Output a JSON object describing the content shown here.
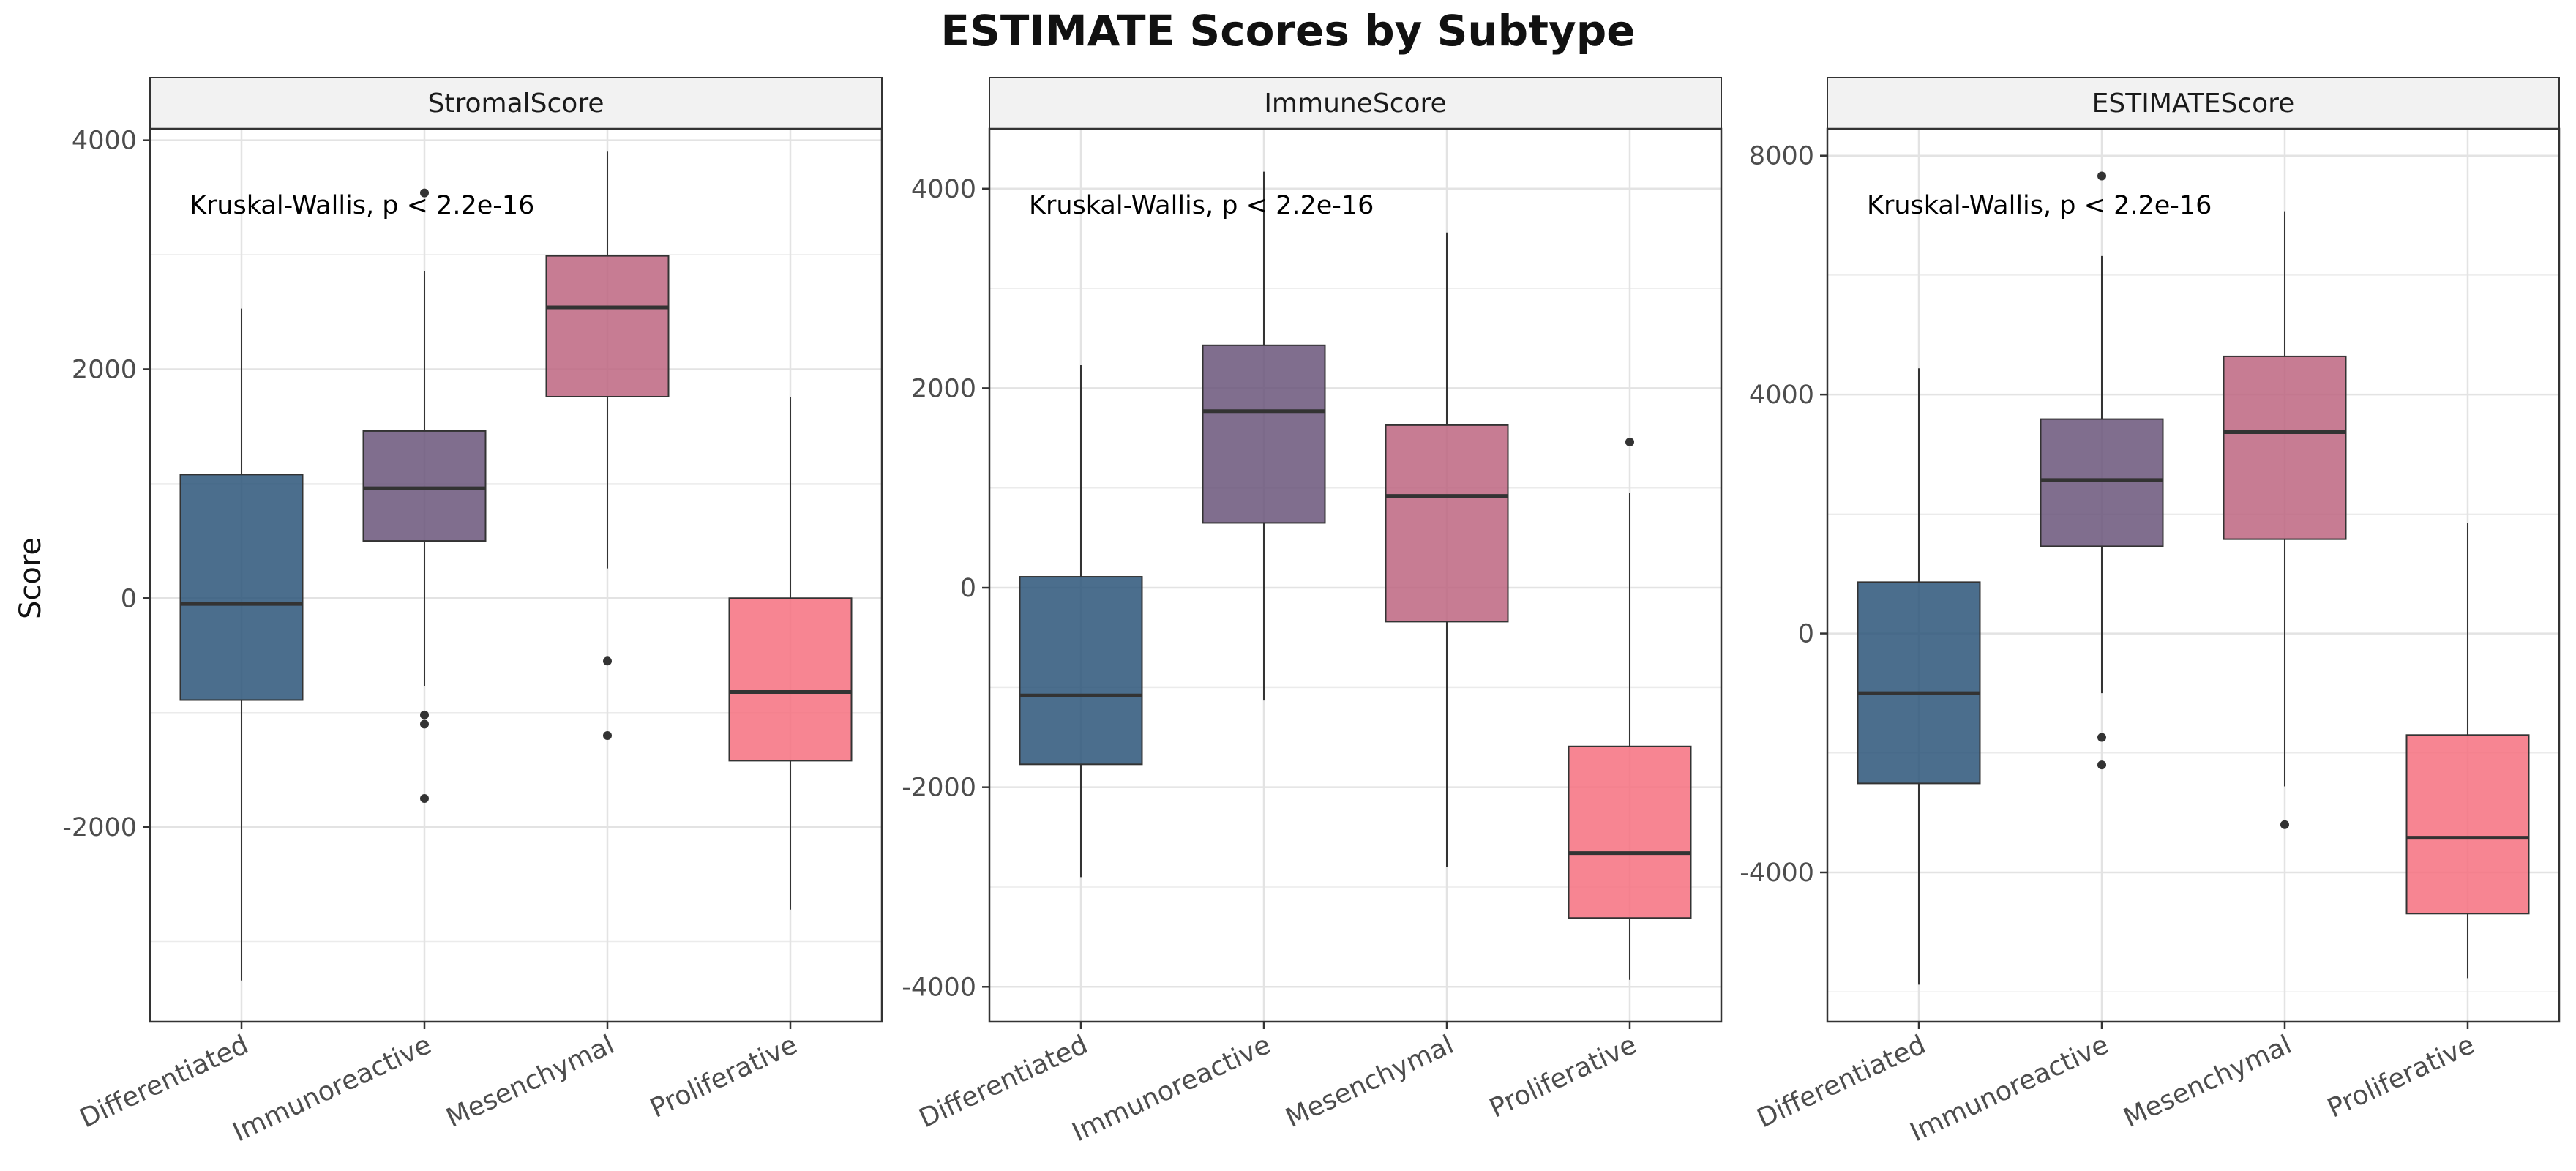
{
  "figure": {
    "title": "ESTIMATE Scores by Subtype",
    "ylabel": "Score",
    "box_stroke": "#333333",
    "colors": {
      "Differentiated": "#2B5579",
      "Immunoreactive": "#6A557A",
      "Mesenchymal": "#BD6580",
      "Proliferative": "#F6707F"
    }
  },
  "chart_data": [
    {
      "type": "boxplot",
      "facet": "StromalScore",
      "categories": [
        "Differentiated",
        "Immunoreactive",
        "Mesenchymal",
        "Proliferative"
      ],
      "annotation": "Kruskal-Wallis, p < 2.2e-16",
      "ylim": [
        -3700,
        4100
      ],
      "yticks": [
        -2000,
        0,
        2000,
        4000
      ],
      "ytick_labels": [
        "-2000",
        "0",
        "2000",
        "4000"
      ],
      "grid": true,
      "boxes": [
        {
          "category": "Differentiated",
          "q1": -890,
          "median": -50,
          "q3": 1080,
          "whisker_low": -3340,
          "whisker_high": 2530,
          "outliers": []
        },
        {
          "category": "Immunoreactive",
          "q1": 500,
          "median": 960,
          "q3": 1460,
          "whisker_low": -770,
          "whisker_high": 2860,
          "outliers": [
            3540,
            -1020,
            -1100,
            -1750
          ]
        },
        {
          "category": "Mesenchymal",
          "q1": 1760,
          "median": 2540,
          "q3": 2990,
          "whisker_low": 260,
          "whisker_high": 3900,
          "outliers": [
            -550,
            -1200
          ]
        },
        {
          "category": "Proliferative",
          "q1": -1420,
          "median": -820,
          "q3": 0,
          "whisker_low": -2720,
          "whisker_high": 1760,
          "outliers": []
        }
      ]
    },
    {
      "type": "boxplot",
      "facet": "ImmuneScore",
      "categories": [
        "Differentiated",
        "Immunoreactive",
        "Mesenchymal",
        "Proliferative"
      ],
      "annotation": "Kruskal-Wallis, p < 2.2e-16",
      "ylim": [
        -4350,
        4600
      ],
      "yticks": [
        -4000,
        -2000,
        0,
        2000,
        4000
      ],
      "ytick_labels": [
        "-4000",
        "-2000",
        "0",
        "2000",
        "4000"
      ],
      "grid": true,
      "boxes": [
        {
          "category": "Differentiated",
          "q1": -1770,
          "median": -1080,
          "q3": 110,
          "whisker_low": -2900,
          "whisker_high": 2230,
          "outliers": []
        },
        {
          "category": "Immunoreactive",
          "q1": 650,
          "median": 1770,
          "q3": 2430,
          "whisker_low": -1130,
          "whisker_high": 4170,
          "outliers": []
        },
        {
          "category": "Mesenchymal",
          "q1": -340,
          "median": 920,
          "q3": 1630,
          "whisker_low": -2800,
          "whisker_high": 3560,
          "outliers": []
        },
        {
          "category": "Proliferative",
          "q1": -3310,
          "median": -2660,
          "q3": -1590,
          "whisker_low": -3930,
          "whisker_high": 950,
          "outliers": [
            1460
          ]
        }
      ]
    },
    {
      "type": "boxplot",
      "facet": "ESTIMATEScore",
      "categories": [
        "Differentiated",
        "Immunoreactive",
        "Mesenchymal",
        "Proliferative"
      ],
      "annotation": "Kruskal-Wallis, p < 2.2e-16",
      "ylim": [
        -6500,
        8450
      ],
      "yticks": [
        -4000,
        0,
        4000,
        8000
      ],
      "ytick_labels": [
        "-4000",
        "0",
        "4000",
        "8000"
      ],
      "grid": true,
      "boxes": [
        {
          "category": "Differentiated",
          "q1": -2510,
          "median": -1000,
          "q3": 860,
          "whisker_low": -5880,
          "whisker_high": 4440,
          "outliers": []
        },
        {
          "category": "Immunoreactive",
          "q1": 1460,
          "median": 2570,
          "q3": 3590,
          "whisker_low": -1000,
          "whisker_high": 6320,
          "outliers": [
            7660,
            -1740,
            -2200
          ]
        },
        {
          "category": "Mesenchymal",
          "q1": 1580,
          "median": 3370,
          "q3": 4640,
          "whisker_low": -2560,
          "whisker_high": 7070,
          "outliers": [
            -3200
          ]
        },
        {
          "category": "Proliferative",
          "q1": -4690,
          "median": -3420,
          "q3": -1700,
          "whisker_low": -5770,
          "whisker_high": 1850,
          "outliers": []
        }
      ]
    }
  ]
}
